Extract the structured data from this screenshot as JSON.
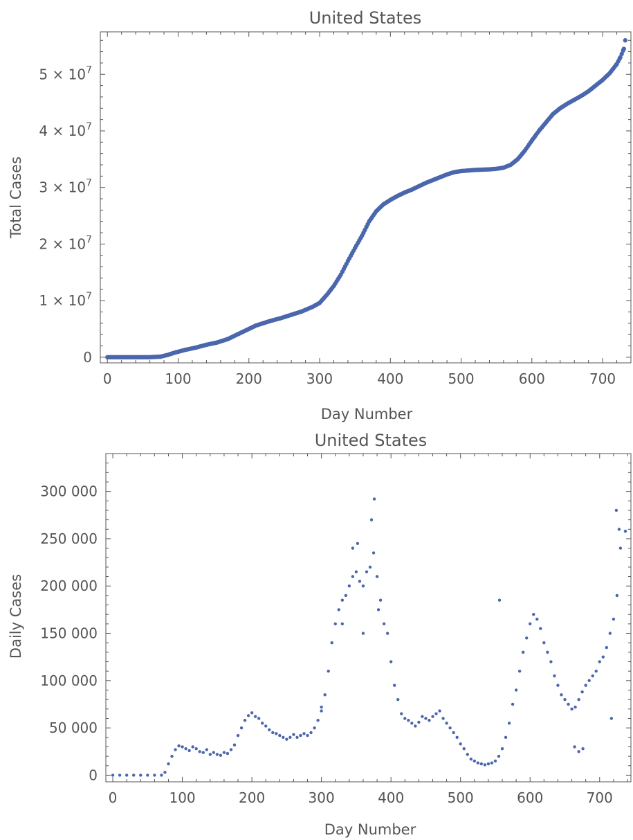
{
  "chart_data": [
    {
      "type": "scatter",
      "title": "United States",
      "xlabel": "Day Number",
      "ylabel": "Total Cases",
      "xlim": [
        -10,
        740
      ],
      "ylim": [
        -1000000,
        57500000
      ],
      "xticks": [
        0,
        100,
        200,
        300,
        400,
        500,
        600,
        700
      ],
      "xtick_labels": [
        "0",
        "100",
        "200",
        "300",
        "400",
        "500",
        "600",
        "700"
      ],
      "yticks": [
        0,
        10000000,
        20000000,
        30000000,
        40000000,
        50000000
      ],
      "ytick_labels": [
        {
          "mantissa": "0",
          "exp": ""
        },
        {
          "mantissa": "1 × 10",
          "exp": "7"
        },
        {
          "mantissa": "2 × 10",
          "exp": "7"
        },
        {
          "mantissa": "3 × 10",
          "exp": "7"
        },
        {
          "mantissa": "4 × 10",
          "exp": "7"
        },
        {
          "mantissa": "5 × 10",
          "exp": "7"
        }
      ],
      "grid": false,
      "marker_color": "#4a66ac",
      "series": [
        {
          "x": [
            0,
            40,
            60,
            75,
            85,
            95,
            110,
            125,
            140,
            155,
            170,
            180,
            190,
            200,
            210,
            220,
            230,
            245,
            260,
            275,
            290,
            300,
            310,
            320,
            330,
            340,
            350,
            360,
            370,
            380,
            390,
            400,
            410,
            420,
            430,
            440,
            450,
            460,
            470,
            480,
            490,
            500,
            510,
            520,
            530,
            540,
            550,
            560,
            570,
            580,
            590,
            600,
            610,
            620,
            630,
            640,
            650,
            660,
            670,
            680,
            690,
            700,
            710,
            715,
            720,
            725,
            730,
            732
          ],
          "y": [
            0,
            0,
            2000,
            100000,
            400000,
            800000,
            1300000,
            1700000,
            2200000,
            2600000,
            3200000,
            3800000,
            4400000,
            5000000,
            5600000,
            6000000,
            6400000,
            6900000,
            7500000,
            8100000,
            8900000,
            9600000,
            11000000,
            12600000,
            14600000,
            17000000,
            19300000,
            21500000,
            24000000,
            25800000,
            27000000,
            27800000,
            28500000,
            29100000,
            29600000,
            30200000,
            30800000,
            31300000,
            31800000,
            32300000,
            32700000,
            32900000,
            33000000,
            33100000,
            33150000,
            33200000,
            33300000,
            33500000,
            34000000,
            35000000,
            36500000,
            38300000,
            40000000,
            41500000,
            43000000,
            44000000,
            44800000,
            45500000,
            46200000,
            47000000,
            48000000,
            49000000,
            50200000,
            51000000,
            51800000,
            53000000,
            54500000,
            56000000
          ]
        }
      ]
    },
    {
      "type": "scatter",
      "title": "United States",
      "xlabel": "Day Number",
      "ylabel": "Daily Cases",
      "xlim": [
        -10,
        745
      ],
      "ylim": [
        -7000,
        340000
      ],
      "xticks": [
        0,
        100,
        200,
        300,
        400,
        500,
        600,
        700
      ],
      "xtick_labels": [
        "0",
        "100",
        "200",
        "300",
        "400",
        "500",
        "600",
        "700"
      ],
      "yticks": [
        0,
        50000,
        100000,
        150000,
        200000,
        250000,
        300000
      ],
      "ytick_labels": [
        "0",
        "50 000",
        "100 000",
        "150 000",
        "200 000",
        "250 000",
        "300 000"
      ],
      "grid": false,
      "marker_color": "#4a66ac",
      "series": [
        {
          "x": [
            0,
            10,
            20,
            30,
            40,
            50,
            60,
            70,
            75,
            80,
            85,
            90,
            95,
            100,
            105,
            110,
            115,
            120,
            125,
            130,
            135,
            140,
            145,
            150,
            155,
            160,
            165,
            170,
            175,
            180,
            185,
            190,
            195,
            200,
            205,
            210,
            215,
            220,
            225,
            230,
            235,
            240,
            245,
            250,
            255,
            260,
            265,
            270,
            275,
            280,
            285,
            290,
            295,
            300,
            305,
            310,
            315,
            320,
            325,
            330,
            335,
            340,
            345,
            350,
            355,
            360,
            365,
            370,
            375,
            380,
            385,
            390,
            395,
            400,
            405,
            410,
            415,
            420,
            425,
            430,
            435,
            440,
            445,
            450,
            455,
            460,
            465,
            470,
            475,
            480,
            485,
            490,
            495,
            500,
            505,
            510,
            515,
            520,
            525,
            530,
            535,
            540,
            545,
            550,
            555,
            560,
            565,
            570,
            575,
            580,
            585,
            590,
            595,
            600,
            605,
            610,
            615,
            620,
            625,
            630,
            635,
            640,
            645,
            650,
            655,
            660,
            665,
            670,
            675,
            680,
            685,
            690,
            695,
            700,
            705,
            710,
            715,
            720,
            725,
            730,
            737,
            300,
            330,
            345,
            352,
            360,
            372,
            376,
            382,
            556,
            664,
            670,
            676,
            717,
            724,
            728
          ],
          "y": [
            0,
            0,
            0,
            0,
            0,
            0,
            0,
            0,
            3000,
            12000,
            20000,
            27000,
            31000,
            30000,
            28000,
            26000,
            30000,
            28000,
            25000,
            24000,
            27000,
            22000,
            24000,
            22000,
            21000,
            24000,
            23000,
            27000,
            32000,
            42000,
            50000,
            58000,
            63000,
            66000,
            62000,
            60000,
            55000,
            52000,
            48000,
            45000,
            44000,
            42000,
            40000,
            38000,
            40000,
            43000,
            40000,
            42000,
            44000,
            42000,
            45000,
            50000,
            58000,
            68000,
            85000,
            110000,
            140000,
            160000,
            175000,
            185000,
            190000,
            200000,
            210000,
            215000,
            205000,
            200000,
            215000,
            220000,
            235000,
            210000,
            185000,
            160000,
            150000,
            120000,
            95000,
            80000,
            65000,
            60000,
            58000,
            55000,
            52000,
            56000,
            62000,
            60000,
            58000,
            62000,
            65000,
            68000,
            60000,
            55000,
            50000,
            45000,
            40000,
            33000,
            28000,
            22000,
            17000,
            15000,
            13000,
            12000,
            11000,
            12000,
            13000,
            15000,
            20000,
            28000,
            40000,
            55000,
            75000,
            90000,
            110000,
            130000,
            145000,
            160000,
            170000,
            165000,
            155000,
            140000,
            130000,
            120000,
            105000,
            95000,
            85000,
            80000,
            75000,
            70000,
            72000,
            80000,
            88000,
            95000,
            100000,
            105000,
            110000,
            120000,
            125000,
            135000,
            150000,
            165000,
            190000,
            240000,
            258000,
            72000,
            160000,
            240000,
            245000,
            150000,
            270000,
            292000,
            175000,
            185000,
            30000,
            25000,
            28000,
            60000,
            280000,
            260000
          ]
        }
      ]
    }
  ]
}
